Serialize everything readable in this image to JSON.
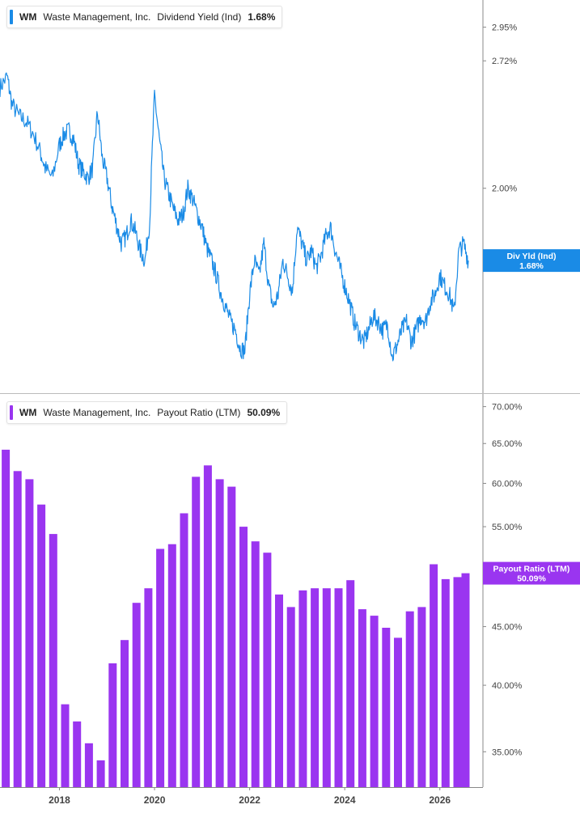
{
  "colors": {
    "yield_line": "#1a8be6",
    "payout_bar": "#9a35f0",
    "axis": "#888888",
    "text": "#444444"
  },
  "top_legend": {
    "ticker": "WM",
    "company": "Waste Management, Inc.",
    "metric": "Dividend Yield (Ind)",
    "value": "1.68%",
    "color": "#1a8be6"
  },
  "bottom_legend": {
    "ticker": "WM",
    "company": "Waste Management, Inc.",
    "metric": "Payout Ratio (LTM)",
    "value": "50.09%",
    "color": "#9a35f0"
  },
  "chart_data": [
    {
      "type": "line",
      "title": "Dividend Yield (Ind)",
      "scale": "log",
      "y_ticks": [
        "2.95%",
        "2.72%",
        "2.00%"
      ],
      "y_tick_values": [
        2.95,
        2.72,
        2.0
      ],
      "xlim": [
        2016.75,
        2026.6
      ],
      "ylim": [
        1.22,
        3.15
      ],
      "current_tag": {
        "label": "Div Yld (Ind)",
        "value": "1.68%"
      },
      "series": [
        {
          "values_unit": "percent",
          "x": [
            2016.75,
            2016.9,
            2017.0,
            2017.15,
            2017.3,
            2017.45,
            2017.6,
            2017.7,
            2017.85,
            2018.0,
            2018.1,
            2018.2,
            2018.3,
            2018.4,
            2018.5,
            2018.6,
            2018.7,
            2018.8,
            2018.9,
            2019.0,
            2019.1,
            2019.2,
            2019.3,
            2019.4,
            2019.5,
            2019.6,
            2019.7,
            2019.8,
            2019.9,
            2020.0,
            2020.1,
            2020.2,
            2020.3,
            2020.4,
            2020.5,
            2020.6,
            2020.7,
            2020.8,
            2020.9,
            2021.0,
            2021.1,
            2021.2,
            2021.3,
            2021.4,
            2021.5,
            2021.6,
            2021.7,
            2021.8,
            2021.9,
            2022.0,
            2022.1,
            2022.2,
            2022.3,
            2022.4,
            2022.5,
            2022.6,
            2022.7,
            2022.8,
            2022.9,
            2023.0,
            2023.1,
            2023.2,
            2023.3,
            2023.4,
            2023.5,
            2023.6,
            2023.7,
            2023.8,
            2023.9,
            2024.0,
            2024.1,
            2024.2,
            2024.3,
            2024.4,
            2024.5,
            2024.6,
            2024.7,
            2024.8,
            2024.9,
            2025.0,
            2025.1,
            2025.2,
            2025.3,
            2025.4,
            2025.5,
            2025.6,
            2025.7,
            2025.8,
            2025.9,
            2026.0,
            2026.1,
            2026.2,
            2026.3,
            2026.4,
            2026.5,
            2026.6
          ],
          "values": [
            2.55,
            2.62,
            2.45,
            2.38,
            2.35,
            2.28,
            2.18,
            2.1,
            2.05,
            2.22,
            2.28,
            2.3,
            2.25,
            2.12,
            2.08,
            2.05,
            2.1,
            2.4,
            2.15,
            2.05,
            1.92,
            1.83,
            1.75,
            1.78,
            1.85,
            1.8,
            1.72,
            1.68,
            1.85,
            2.5,
            2.25,
            2.05,
            1.97,
            1.9,
            1.85,
            1.88,
            2.0,
            1.95,
            1.88,
            1.82,
            1.73,
            1.68,
            1.62,
            1.55,
            1.5,
            1.45,
            1.42,
            1.36,
            1.35,
            1.55,
            1.68,
            1.62,
            1.75,
            1.58,
            1.5,
            1.55,
            1.68,
            1.62,
            1.56,
            1.82,
            1.75,
            1.68,
            1.72,
            1.65,
            1.7,
            1.78,
            1.82,
            1.72,
            1.65,
            1.58,
            1.52,
            1.45,
            1.41,
            1.38,
            1.42,
            1.47,
            1.45,
            1.42,
            1.44,
            1.33,
            1.37,
            1.42,
            1.45,
            1.38,
            1.42,
            1.47,
            1.45,
            1.52,
            1.55,
            1.62,
            1.58,
            1.55,
            1.48,
            1.72,
            1.75,
            1.68
          ]
        }
      ]
    },
    {
      "type": "bar",
      "title": "Payout Ratio (LTM)",
      "scale": "log",
      "y_ticks": [
        "70.00%",
        "65.00%",
        "60.00%",
        "55.00%",
        "45.00%",
        "40.00%",
        "35.00%"
      ],
      "y_tick_values": [
        70,
        65,
        60,
        55,
        45,
        40,
        35
      ],
      "x_ticks": [
        "2018",
        "2020",
        "2022",
        "2024",
        "2026"
      ],
      "x_tick_values": [
        2018,
        2020,
        2022,
        2024,
        2026
      ],
      "xlim": [
        2016.75,
        2026.6
      ],
      "ylim": [
        32.6,
        71.8
      ],
      "current_tag": {
        "label": "Payout Ratio (LTM)",
        "value": "50.09%"
      },
      "series": [
        {
          "values_unit": "percent",
          "x": [
            2016.87,
            2017.12,
            2017.37,
            2017.62,
            2017.87,
            2018.12,
            2018.37,
            2018.62,
            2018.87,
            2019.12,
            2019.37,
            2019.62,
            2019.87,
            2020.12,
            2020.37,
            2020.62,
            2020.87,
            2021.12,
            2021.37,
            2021.62,
            2021.87,
            2022.12,
            2022.37,
            2022.62,
            2022.87,
            2023.12,
            2023.37,
            2023.62,
            2023.87,
            2024.12,
            2024.37,
            2024.62,
            2024.87,
            2025.12,
            2025.37,
            2025.62,
            2025.87,
            2026.12,
            2026.37,
            2026.54
          ],
          "values": [
            64.2,
            61.5,
            60.5,
            57.5,
            54.2,
            38.5,
            37.2,
            35.6,
            34.4,
            41.8,
            43.8,
            47.2,
            48.6,
            52.6,
            53.1,
            56.5,
            60.8,
            62.2,
            60.5,
            59.6,
            55.0,
            53.4,
            52.2,
            48.0,
            46.8,
            48.4,
            48.6,
            48.6,
            48.6,
            49.4,
            46.6,
            46.0,
            44.9,
            44.0,
            46.4,
            46.8,
            51.0,
            49.5,
            49.7,
            50.09
          ]
        }
      ]
    }
  ]
}
